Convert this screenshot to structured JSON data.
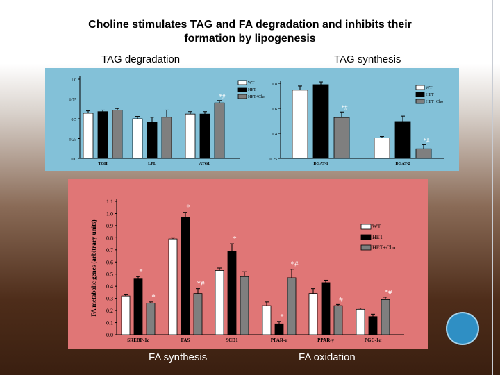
{
  "title_line1": "Choline  stimulates  TAG and FA degradation and  inhibits  their",
  "title_line2": "formation by lipogenesis",
  "labels": {
    "tag_degradation": "TAG degradation",
    "tag_synthesis": "TAG synthesis",
    "fa_synthesis": "FA synthesis",
    "fa_oxidation": "FA oxidation"
  },
  "colors": {
    "wt": "#ffffff",
    "het": "#000000",
    "het_cho": "#7f7f7f",
    "blue_panel": "#83c1d8",
    "red_panel": "#e07676"
  },
  "chart_data": [
    {
      "type": "bar",
      "name": "tag-degradation",
      "categories": [
        "TGH",
        "LPL",
        "ATGL"
      ],
      "series": [
        {
          "name": "WT",
          "values": [
            0.57,
            0.5,
            0.56
          ]
        },
        {
          "name": "HET",
          "values": [
            0.59,
            0.46,
            0.56
          ]
        },
        {
          "name": "HET+Cho",
          "values": [
            0.61,
            0.52,
            0.7
          ]
        }
      ],
      "errors": [
        [
          0.03,
          0.03,
          0.03
        ],
        [
          0.02,
          0.06,
          0.03
        ],
        [
          0.02,
          0.09,
          0.03
        ]
      ],
      "annotations": [
        {
          "text": "*#",
          "category": 2,
          "series": 2
        }
      ],
      "ylim": [
        0,
        1.0
      ],
      "yticks": [
        "0.0",
        "0.25",
        "0.5",
        "0.75",
        "1.0"
      ],
      "legend": [
        "WT",
        "HET",
        "HET+Cho"
      ]
    },
    {
      "type": "bar",
      "name": "tag-synthesis",
      "categories": [
        "DGAT-1",
        "DGAT-2"
      ],
      "series": [
        {
          "name": "WT",
          "values": [
            0.75,
            0.4
          ]
        },
        {
          "name": "HET",
          "values": [
            0.79,
            0.52
          ]
        },
        {
          "name": "HET+Cho",
          "values": [
            0.55,
            0.32
          ]
        }
      ],
      "errors": [
        [
          0.03,
          0.01
        ],
        [
          0.02,
          0.04
        ],
        [
          0.04,
          0.03
        ]
      ],
      "annotations": [
        {
          "text": "*#",
          "category": 0,
          "series": 2
        },
        {
          "text": "*#",
          "category": 1,
          "series": 2
        }
      ],
      "ylim": [
        0.25,
        0.8
      ],
      "yticks": [
        "0.25",
        "0.4",
        "0.6",
        "0.8"
      ],
      "legend": [
        "WT",
        "HET",
        "HET+Cho"
      ]
    },
    {
      "type": "bar",
      "name": "fa-metabolic-genes",
      "ylabel": "FA metabolic genes (arbitrary units)",
      "categories": [
        "SREBP-1c",
        "FAS",
        "SCD1",
        "PPAR-α",
        "PPAR-γ",
        "PGC-1α"
      ],
      "series": [
        {
          "name": "WT",
          "values": [
            0.32,
            0.79,
            0.53,
            0.24,
            0.34,
            0.21
          ]
        },
        {
          "name": "HET",
          "values": [
            0.46,
            0.97,
            0.69,
            0.09,
            0.43,
            0.15
          ]
        },
        {
          "name": "HET+Cho",
          "values": [
            0.26,
            0.34,
            0.48,
            0.47,
            0.24,
            0.29
          ]
        }
      ],
      "errors": [
        [
          0.01,
          0.01,
          0.02,
          0.03,
          0.04,
          0.01
        ],
        [
          0.02,
          0.04,
          0.06,
          0.02,
          0.02,
          0.02
        ],
        [
          0.01,
          0.04,
          0.04,
          0.07,
          0.01,
          0.02
        ]
      ],
      "annotations": [
        {
          "text": "*",
          "category": 0,
          "series": 1
        },
        {
          "text": "*",
          "category": 0,
          "series": 2
        },
        {
          "text": "*",
          "category": 1,
          "series": 1
        },
        {
          "text": "*#",
          "category": 1,
          "series": 2
        },
        {
          "text": "*",
          "category": 2,
          "series": 1
        },
        {
          "text": "*",
          "category": 3,
          "series": 1
        },
        {
          "text": "*#",
          "category": 3,
          "series": 2
        },
        {
          "text": "#",
          "category": 4,
          "series": 2
        },
        {
          "text": "*#",
          "category": 5,
          "series": 2
        }
      ],
      "ylim": [
        0,
        1.1
      ],
      "yticks": [
        "0.0",
        "0.1",
        "0.2",
        "0.3",
        "0.4",
        "0.5",
        "0.6",
        "0.7",
        "0.8",
        "0.9",
        "1.0",
        "1.1"
      ],
      "legend": [
        "WT",
        "HET",
        "HET+Cho"
      ]
    }
  ]
}
